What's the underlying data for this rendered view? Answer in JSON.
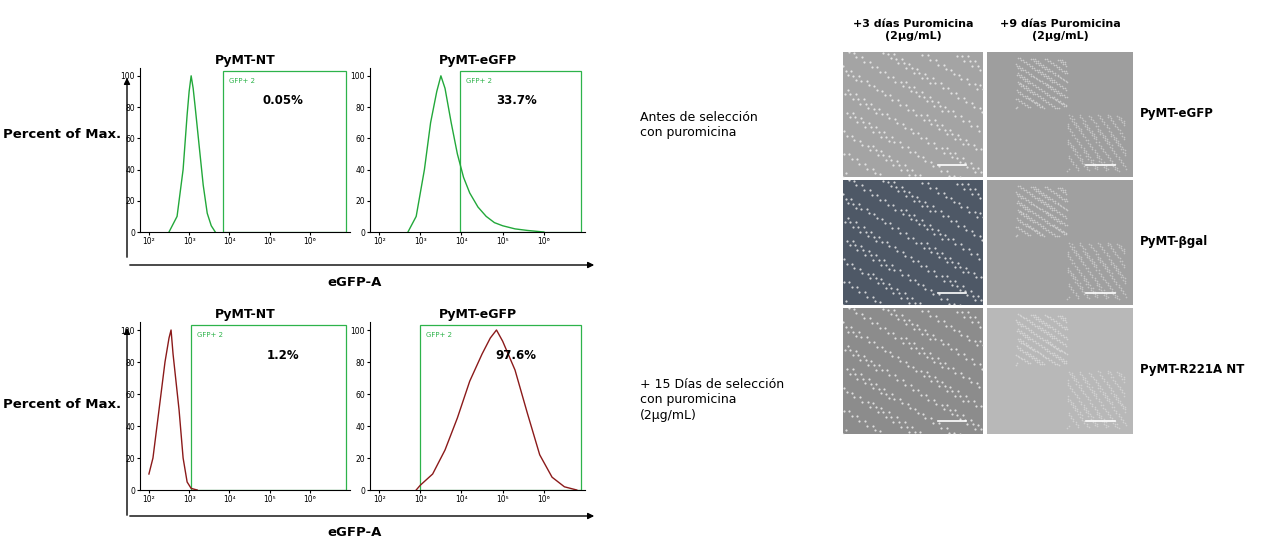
{
  "chart_data": [
    {
      "type": "line",
      "title": "PyMT-NT",
      "color": "#22a83a",
      "log": "x",
      "x": [
        316,
        501,
        708,
        891,
        1000,
        1122,
        1259,
        1413,
        1778,
        2239,
        2818,
        3548,
        4467
      ],
      "values": [
        0,
        10,
        40,
        75,
        90,
        100,
        92,
        80,
        55,
        30,
        12,
        4,
        0
      ],
      "xlim": [
        60,
        10000000
      ],
      "xticks": [
        {
          "value": 100,
          "label": "10²"
        },
        {
          "value": 1000,
          "label": "10³"
        },
        {
          "value": 10000,
          "label": "10⁴"
        },
        {
          "value": 100000,
          "label": "10⁵"
        },
        {
          "value": 1000000,
          "label": "10⁶"
        }
      ],
      "ylim": [
        0,
        105
      ],
      "yticks": [
        0,
        20,
        40,
        60,
        80,
        100
      ],
      "gate": {
        "range": [
          7000,
          8000000
        ],
        "label": "GFP+ 2",
        "annotation": "0.05%"
      }
    },
    {
      "type": "line",
      "title": "PyMT-eGFP",
      "color": "#22a83a",
      "log": "x",
      "x": [
        501,
        794,
        1259,
        1778,
        2512,
        3162,
        3981,
        5623,
        7943,
        11220,
        15849,
        25119,
        39811,
        63096,
        100000,
        199526,
        398107,
        1000000
      ],
      "values": [
        0,
        10,
        40,
        70,
        90,
        100,
        92,
        70,
        50,
        35,
        25,
        16,
        10,
        6,
        4,
        2,
        1,
        0
      ],
      "xlim": [
        60,
        10000000
      ],
      "xticks": [
        {
          "value": 100,
          "label": "10²"
        },
        {
          "value": 1000,
          "label": "10³"
        },
        {
          "value": 10000,
          "label": "10⁴"
        },
        {
          "value": 100000,
          "label": "10⁵"
        },
        {
          "value": 1000000,
          "label": "10⁶"
        }
      ],
      "ylim": [
        0,
        105
      ],
      "yticks": [
        0,
        20,
        40,
        60,
        80,
        100
      ],
      "gate": {
        "range": [
          9000,
          8000000
        ],
        "label": "GFP+ 2",
        "annotation": "33.7%"
      }
    },
    {
      "type": "line",
      "title": "PyMT-NT",
      "color": "#8b1a1a",
      "log": "x",
      "x": [
        100,
        126,
        178,
        251,
        316,
        355,
        398,
        562,
        708,
        891,
        1122,
        1585
      ],
      "values": [
        10,
        20,
        50,
        80,
        95,
        100,
        85,
        50,
        20,
        5,
        1,
        0
      ],
      "xlim": [
        60,
        10000000
      ],
      "xticks": [
        {
          "value": 100,
          "label": "10²"
        },
        {
          "value": 1000,
          "label": "10³"
        },
        {
          "value": 10000,
          "label": "10⁴"
        },
        {
          "value": 100000,
          "label": "10⁵"
        },
        {
          "value": 1000000,
          "label": "10⁶"
        }
      ],
      "ylim": [
        0,
        105
      ],
      "yticks": [
        0,
        20,
        40,
        60,
        80,
        100
      ],
      "gate": {
        "range": [
          1100,
          8000000
        ],
        "label": "GFP+ 2",
        "annotation": "1.2%"
      }
    },
    {
      "type": "line",
      "title": "PyMT-eGFP",
      "color": "#8b1a1a",
      "log": "x",
      "x": [
        794,
        1000,
        1995,
        3981,
        7943,
        15849,
        31623,
        50119,
        70795,
        100000,
        199526,
        398107,
        794328,
        1584893,
        3162278,
        6309573
      ],
      "values": [
        0,
        3,
        10,
        25,
        45,
        68,
        85,
        95,
        100,
        93,
        75,
        48,
        22,
        8,
        2,
        0
      ],
      "xlim": [
        60,
        10000000
      ],
      "xticks": [
        {
          "value": 100,
          "label": "10²"
        },
        {
          "value": 1000,
          "label": "10³"
        },
        {
          "value": 10000,
          "label": "10⁴"
        },
        {
          "value": 100000,
          "label": "10⁵"
        },
        {
          "value": 1000000,
          "label": "10⁶"
        }
      ],
      "ylim": [
        0,
        105
      ],
      "yticks": [
        0,
        20,
        40,
        60,
        80,
        100
      ],
      "gate": {
        "range": [
          1000,
          8000000
        ],
        "label": "GFP+ 2",
        "annotation": "97.6%"
      }
    }
  ],
  "y_axis_label": "Percent of Max.",
  "x_axis_label": "eGFP-A",
  "row_labels": [
    "Antes de selección\ncon puromicina",
    "+ 15 Días de selección\ncon puromicina\n(2µg/mL)"
  ],
  "microscopy": {
    "column_titles": [
      "+3 días Puromicina\n(2µg/mL)",
      "+9 días Puromicina\n(2µg/mL)"
    ],
    "row_labels": [
      "PyMT-eGFP",
      "PyMT-βgal",
      "PyMT-R221A NT"
    ]
  }
}
